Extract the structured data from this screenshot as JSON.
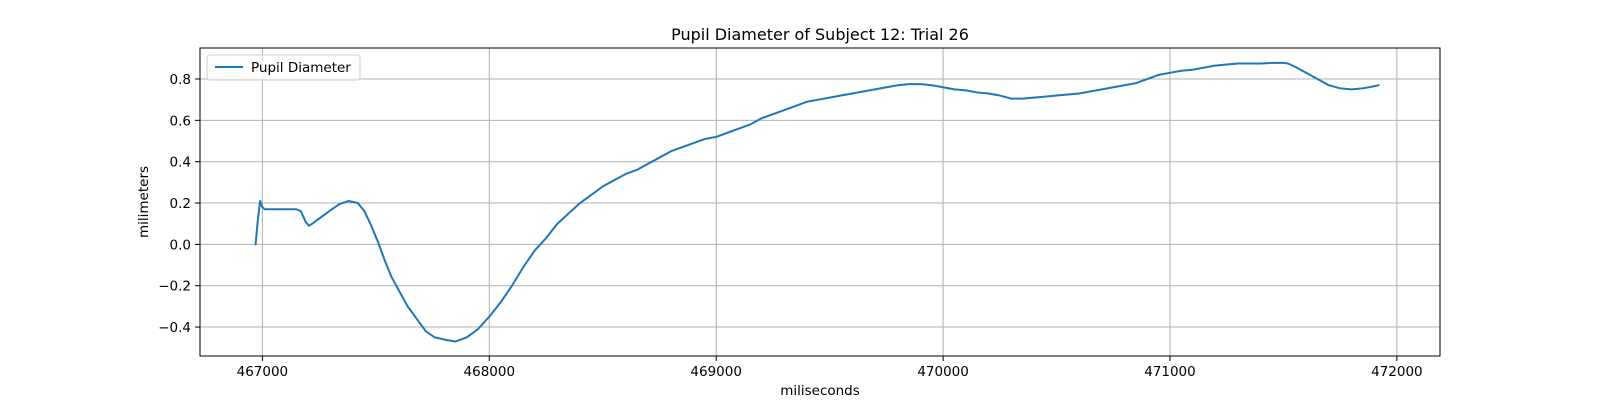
{
  "chart_data": {
    "type": "line",
    "title": "Pupil Diameter of Subject 12: Trial 26",
    "xlabel": "miliseconds",
    "ylabel": "milimeters",
    "xlim": [
      466725,
      472190
    ],
    "ylim": [
      -0.54,
      0.95
    ],
    "xticks": [
      467000,
      468000,
      469000,
      470000,
      471000,
      472000
    ],
    "xtick_labels": [
      "467000",
      "468000",
      "469000",
      "470000",
      "471000",
      "472000"
    ],
    "yticks": [
      -0.4,
      -0.2,
      0.0,
      0.2,
      0.4,
      0.6,
      0.8
    ],
    "ytick_labels": [
      "−0.4",
      "−0.2",
      "0.0",
      "0.2",
      "0.4",
      "0.6",
      "0.8"
    ],
    "grid": true,
    "legend": "upper left",
    "series": [
      {
        "name": "Pupil Diameter",
        "color": "#1f77b4",
        "x": [
          466970,
          466980,
          466990,
          467000,
          467010,
          467050,
          467100,
          467150,
          467170,
          467190,
          467205,
          467220,
          467250,
          467300,
          467340,
          467380,
          467420,
          467450,
          467480,
          467510,
          467540,
          467570,
          467600,
          467640,
          467680,
          467720,
          467760,
          467800,
          467850,
          467900,
          467950,
          468000,
          468050,
          468100,
          468150,
          468200,
          468250,
          468300,
          468350,
          468400,
          468450,
          468500,
          468550,
          468600,
          468650,
          468700,
          468750,
          468800,
          468850,
          468900,
          468950,
          469000,
          469050,
          469100,
          469150,
          469200,
          469250,
          469300,
          469350,
          469400,
          469450,
          469500,
          469550,
          469600,
          469650,
          469700,
          469750,
          469800,
          469850,
          469900,
          469950,
          470000,
          470050,
          470100,
          470150,
          470200,
          470250,
          470300,
          470350,
          470400,
          470450,
          470500,
          470550,
          470600,
          470650,
          470700,
          470750,
          470800,
          470850,
          470900,
          470950,
          471000,
          471050,
          471100,
          471150,
          471200,
          471250,
          471300,
          471350,
          471400,
          471450,
          471500,
          471520,
          471550,
          471600,
          471650,
          471700,
          471750,
          471800,
          471850,
          471900,
          471920
        ],
        "y": [
          0.0,
          0.12,
          0.21,
          0.18,
          0.17,
          0.17,
          0.17,
          0.17,
          0.16,
          0.11,
          0.09,
          0.1,
          0.125,
          0.165,
          0.195,
          0.21,
          0.2,
          0.16,
          0.09,
          0.01,
          -0.08,
          -0.16,
          -0.22,
          -0.3,
          -0.36,
          -0.42,
          -0.45,
          -0.46,
          -0.47,
          -0.45,
          -0.41,
          -0.35,
          -0.28,
          -0.2,
          -0.11,
          -0.03,
          0.03,
          0.1,
          0.15,
          0.2,
          0.24,
          0.28,
          0.31,
          0.34,
          0.36,
          0.39,
          0.42,
          0.45,
          0.47,
          0.49,
          0.51,
          0.52,
          0.54,
          0.56,
          0.58,
          0.61,
          0.63,
          0.65,
          0.67,
          0.69,
          0.7,
          0.71,
          0.72,
          0.73,
          0.74,
          0.75,
          0.76,
          0.77,
          0.775,
          0.775,
          0.77,
          0.76,
          0.75,
          0.745,
          0.735,
          0.73,
          0.72,
          0.705,
          0.705,
          0.71,
          0.715,
          0.72,
          0.725,
          0.73,
          0.74,
          0.75,
          0.76,
          0.77,
          0.78,
          0.8,
          0.82,
          0.83,
          0.84,
          0.845,
          0.855,
          0.865,
          0.87,
          0.875,
          0.875,
          0.875,
          0.878,
          0.878,
          0.875,
          0.86,
          0.83,
          0.8,
          0.77,
          0.755,
          0.75,
          0.755,
          0.765,
          0.77
        ]
      }
    ]
  }
}
